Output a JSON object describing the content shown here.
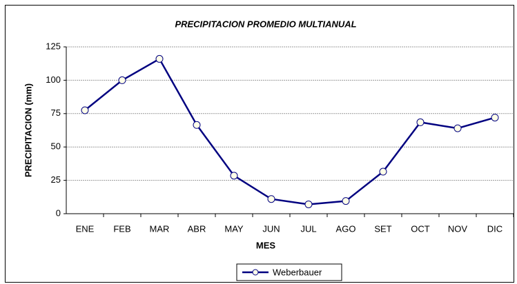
{
  "chart_data": {
    "type": "line",
    "title": "PRECIPITACION PROMEDIO MULTIANUAL",
    "x_label": "MES",
    "y_label": "PRECIPITACION (mm)",
    "categories": [
      "ENE",
      "FEB",
      "MAR",
      "ABR",
      "MAY",
      "JUN",
      "JUL",
      "AGO",
      "SET",
      "OCT",
      "NOV",
      "DIC"
    ],
    "series": [
      {
        "name": "Weberbauer",
        "color": "#000080",
        "values": [
          77.5,
          100,
          116,
          66.5,
          28.5,
          11,
          7,
          9.5,
          31.5,
          68.5,
          64,
          72
        ]
      }
    ],
    "ylim": [
      0,
      125
    ],
    "yticks": [
      0,
      25,
      50,
      75,
      100,
      125
    ],
    "grid": true,
    "legend": "bottom"
  }
}
